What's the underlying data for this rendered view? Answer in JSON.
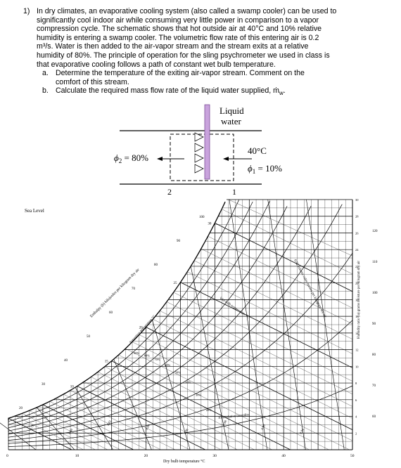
{
  "problem": {
    "number": "1)",
    "paragraph": [
      "In dry climates, an evaporative cooling system (also called a swamp cooler) can be used to",
      "significantly cool indoor air while consuming very little power in comparison to a vapor",
      "compression cycle. The schematic shows that hot outside air at 40°C and 10% relative",
      "humidity is entering a swamp cooler. The volumetric flow rate of this entering air is 0.2",
      "m³/s. Water is then added to the air-vapor stream and the stream exits at a relative",
      "humidity of 80%. The principle of operation for the sling psychrometer we used in class is",
      "that evaporative cooling follows a path of constant wet bulb temperature."
    ],
    "part_a_letter": "a.",
    "part_a": [
      "Determine the temperature of the exiting air-vapor stream. Comment on the",
      "comfort of this stream."
    ],
    "part_b_letter": "b.",
    "part_b": "Calculate the required mass flow rate of the liquid water supplied, ṁ",
    "part_b_sub": "w",
    "part_b_end": "."
  },
  "schematic": {
    "water_label_1": "Liquid",
    "water_label_2": "water",
    "inlet_temp": "40°C",
    "inlet_phi_symbol": "ϕ",
    "inlet_phi_sub": "1",
    "inlet_phi_value": " = 10%",
    "outlet_phi_symbol": "ϕ",
    "outlet_phi_sub": "2",
    "outlet_phi_value": " = 80%",
    "state_out": "2",
    "state_in": "1"
  },
  "chart": {
    "sea_level": "Sea Level",
    "x_label": "Dry bulb temperature °C",
    "x_ticks": [
      "0",
      "10",
      "20",
      "30",
      "40",
      "50"
    ],
    "right_ticks": [
      "30",
      "28",
      "26",
      "24",
      "22",
      "20",
      "18",
      "16",
      "14",
      "12",
      "10",
      "8",
      "6",
      "4",
      "2"
    ],
    "far_right_ticks": [
      "120",
      "110",
      "100",
      "90",
      "80",
      "70",
      "60"
    ],
    "right_axis_label": "Humidity ratio (ω) grams moisture per kilogram dry air",
    "enthalpy_label": "Enthalpy (h) kilojoules per kilogram dry air",
    "enthalpy_ticks": [
      "100",
      "90",
      "80",
      "70",
      "60",
      "50",
      "40",
      "30",
      "20"
    ],
    "saturation_label": "Saturation temperature °C",
    "wet_bulb_label": "Wet bulb temperature °C",
    "wet_bulb_ticks": [
      "30",
      "25",
      "20",
      "15",
      "10"
    ],
    "rh_label": "10% relative humidity",
    "rh_ticks": [
      "90%",
      "80%",
      "70%",
      "60%",
      "50%",
      "40%",
      "30%",
      "20%"
    ],
    "volume_label": "0.92 volume cubic meters per kilogram dry air",
    "volume_ticks": [
      "0.94",
      "0.90",
      "0.88",
      "0.86",
      "0.84",
      "0.82",
      "0.80",
      "0.78"
    ]
  }
}
